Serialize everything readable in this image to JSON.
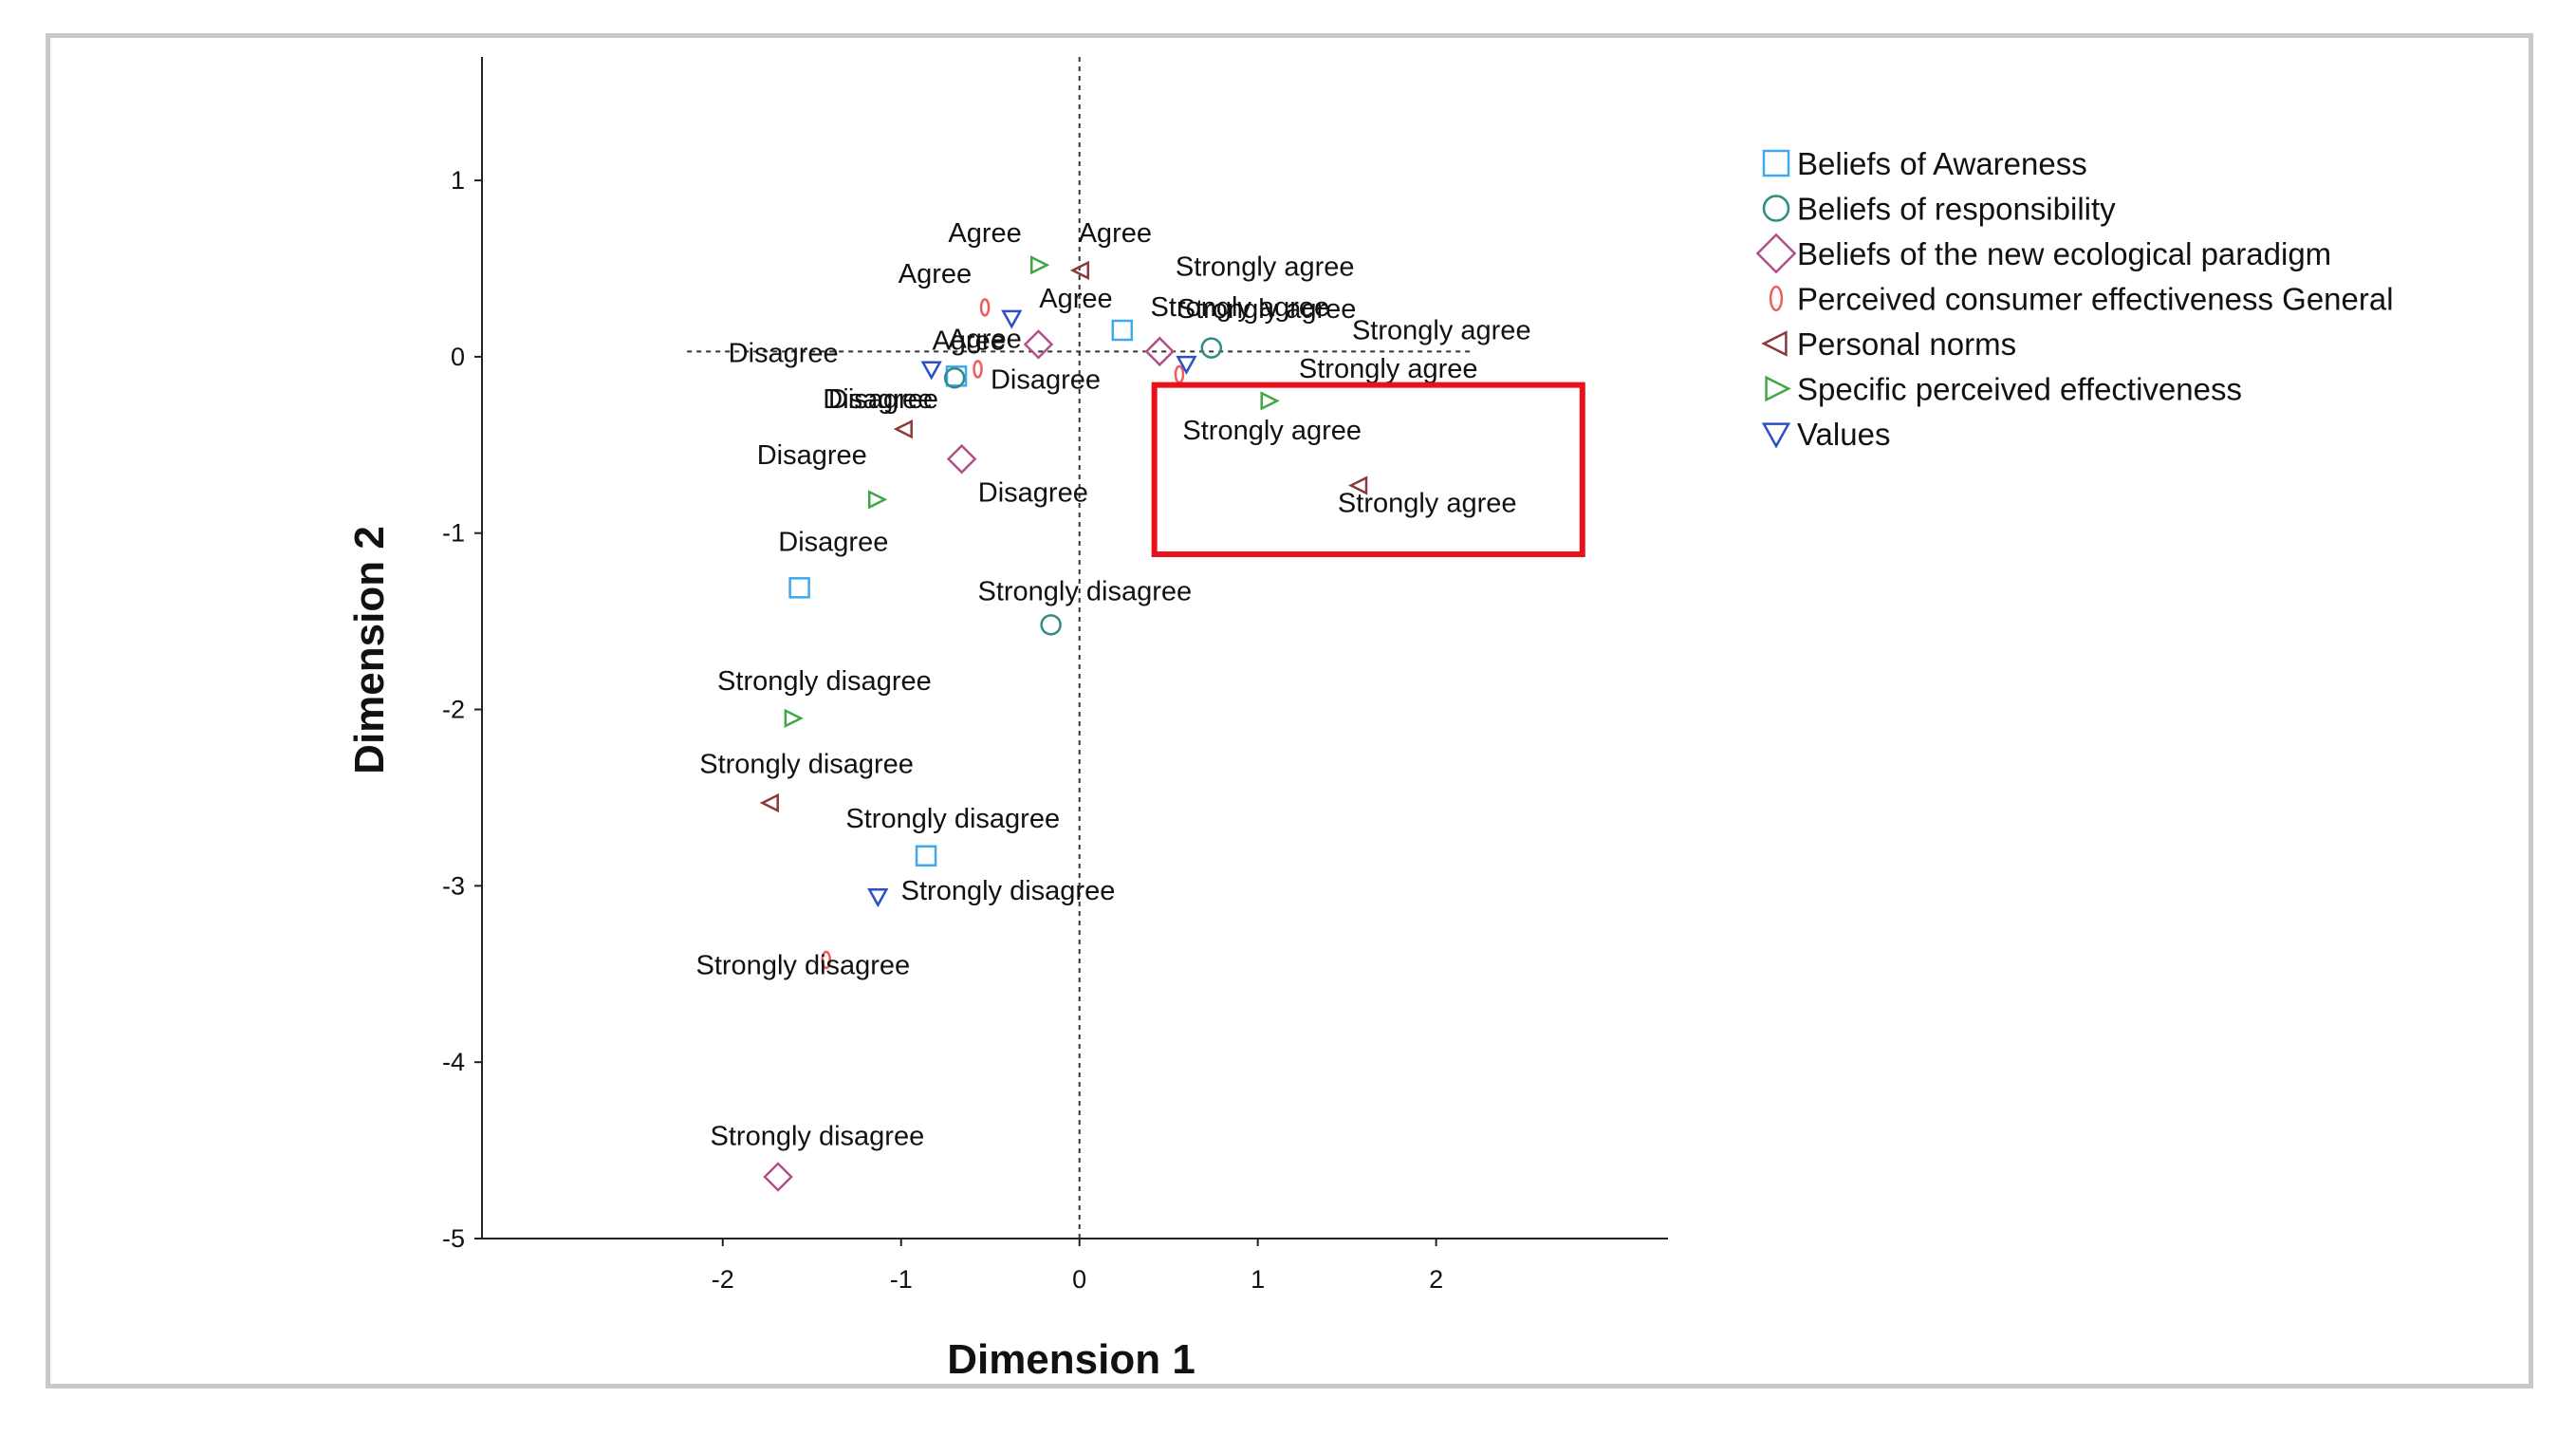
{
  "chart_data": {
    "type": "scatter",
    "xlabel": "Dimension 1",
    "ylabel": "Dimension 2",
    "xlim": [
      -3.35,
      3.3
    ],
    "ylim": [
      -5.0,
      1.7
    ],
    "xticks": [
      -2,
      -1,
      0,
      1,
      2
    ],
    "yticks": [
      1,
      0,
      -1,
      -2,
      -3,
      -4,
      -5
    ],
    "reference_lines": {
      "x": 0,
      "y": 0.03
    },
    "series": [
      {
        "name": "Beliefs of Awareness",
        "marker": "square",
        "color": "#3ea8f0",
        "points": [
          {
            "x": 0.24,
            "y": 0.15,
            "label": "Strongly agree"
          },
          {
            "x": -0.69,
            "y": -0.11,
            "label": "Agree"
          },
          {
            "x": -1.57,
            "y": -1.31,
            "label": "Disagree"
          },
          {
            "x": -0.86,
            "y": -2.83,
            "label": "Strongly disagree"
          }
        ]
      },
      {
        "name": "Beliefs of responsibility",
        "marker": "circle",
        "color": "#2f8c84",
        "points": [
          {
            "x": 0.74,
            "y": 0.05,
            "label": "Strongly agree"
          },
          {
            "x": -0.7,
            "y": -0.12,
            "label": "Disagree"
          },
          {
            "x": -0.16,
            "y": -1.52,
            "label": "Strongly disagree"
          }
        ]
      },
      {
        "name": "Beliefs of the new ecological paradigm",
        "marker": "diamond",
        "color": "#b3508a",
        "points": [
          {
            "x": 0.45,
            "y": 0.03,
            "label": "Strongly agree"
          },
          {
            "x": -0.23,
            "y": 0.07,
            "label": "Agree"
          },
          {
            "x": -0.66,
            "y": -0.58,
            "label": "Disagree"
          },
          {
            "x": -1.69,
            "y": -4.65,
            "label": "Strongly disagree"
          }
        ]
      },
      {
        "name": "Perceived consumer effectiveness General",
        "marker": "ellipse",
        "color": "#f05c5c",
        "points": [
          {
            "x": -0.53,
            "y": 0.28,
            "label": "Agree"
          },
          {
            "x": 0.56,
            "y": -0.1,
            "label": "Strongly agree"
          },
          {
            "x": -0.57,
            "y": -0.07,
            "label": "Disagree"
          },
          {
            "x": -1.42,
            "y": -3.42,
            "label": "Strongly disagree"
          }
        ]
      },
      {
        "name": "Personal norms",
        "marker": "triangle-left",
        "color": "#8b3a3a",
        "points": [
          {
            "x": 0.01,
            "y": 0.49,
            "label": "Agree"
          },
          {
            "x": -0.98,
            "y": -0.41,
            "label": "Disagree"
          },
          {
            "x": 1.57,
            "y": -0.73,
            "label": "Strongly agree"
          },
          {
            "x": -1.73,
            "y": -2.53,
            "label": "Strongly disagree"
          }
        ]
      },
      {
        "name": "Specific perceived effectiveness",
        "marker": "triangle-right",
        "color": "#3fa845",
        "points": [
          {
            "x": -0.23,
            "y": 0.52,
            "label": "Agree"
          },
          {
            "x": 1.06,
            "y": -0.25,
            "label": "Strongly agree"
          },
          {
            "x": -1.14,
            "y": -0.81,
            "label": "Disagree"
          },
          {
            "x": -1.61,
            "y": -2.05,
            "label": "Strongly disagree"
          }
        ]
      },
      {
        "name": "Values",
        "marker": "triangle-down",
        "color": "#2a4fc8",
        "points": [
          {
            "x": -0.38,
            "y": 0.22,
            "label": "Agree"
          },
          {
            "x": 0.6,
            "y": -0.04,
            "label": "Strongly agree"
          },
          {
            "x": -0.83,
            "y": -0.07,
            "label": "Disagree"
          },
          {
            "x": -1.13,
            "y": -3.06,
            "label": "Strongly disagree"
          }
        ]
      }
    ],
    "annotations": [
      {
        "type": "highlight-box",
        "color": "#e8121b",
        "x_range": [
          0.42,
          2.82
        ],
        "y_range": [
          -1.12,
          -0.16
        ]
      }
    ]
  }
}
